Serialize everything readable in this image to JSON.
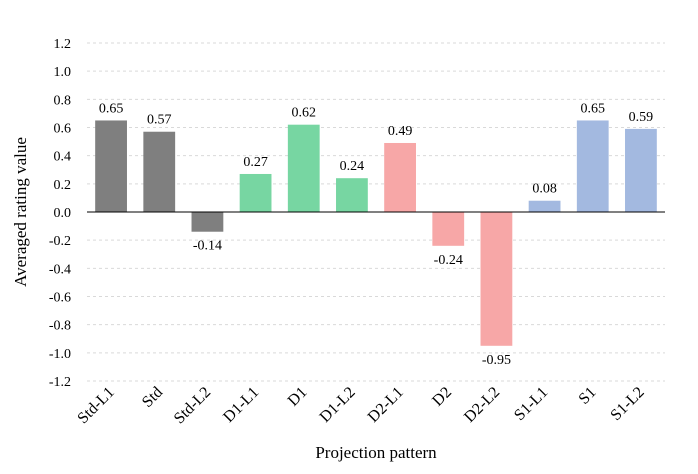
{
  "chart_data": {
    "type": "bar",
    "title": "",
    "xlabel": "Projection pattern",
    "ylabel": "Averaged rating value",
    "ylim": [
      -1.2,
      1.2
    ],
    "yticks": [
      1.2,
      1.0,
      0.8,
      0.6,
      0.4,
      0.2,
      0.0,
      -0.2,
      -0.4,
      -0.6,
      -0.8,
      -1.0,
      -1.2
    ],
    "ytick_labels": [
      "1.2",
      "1.0",
      "0.8",
      "0.6",
      "0.4",
      "0.2",
      "0.0",
      "-0.2",
      "-0.4",
      "-0.6",
      "-0.8",
      "-1.0",
      "-1.2"
    ],
    "grid": true,
    "categories": [
      "Std-L1",
      "Std",
      "Std-L2",
      "D1-L1",
      "D1",
      "D1-L2",
      "D2-L1",
      "D2",
      "D2-L2",
      "S1-L1",
      "S1",
      "S1-L2"
    ],
    "values": [
      0.65,
      0.57,
      -0.14,
      0.27,
      0.62,
      0.24,
      0.49,
      -0.24,
      -0.95,
      0.08,
      0.65,
      0.59
    ],
    "value_labels": [
      "0.65",
      "0.57",
      "-0.14",
      "0.27",
      "0.62",
      "0.24",
      "0.49",
      "-0.24",
      "-0.95",
      "0.08",
      "0.65",
      "0.59"
    ],
    "colors": [
      "#7f7f7f",
      "#7f7f7f",
      "#7f7f7f",
      "#77d6a2",
      "#77d6a2",
      "#77d6a2",
      "#f7a7a7",
      "#f7a7a7",
      "#f7a7a7",
      "#a3b9e0",
      "#a3b9e0",
      "#a3b9e0"
    ]
  }
}
